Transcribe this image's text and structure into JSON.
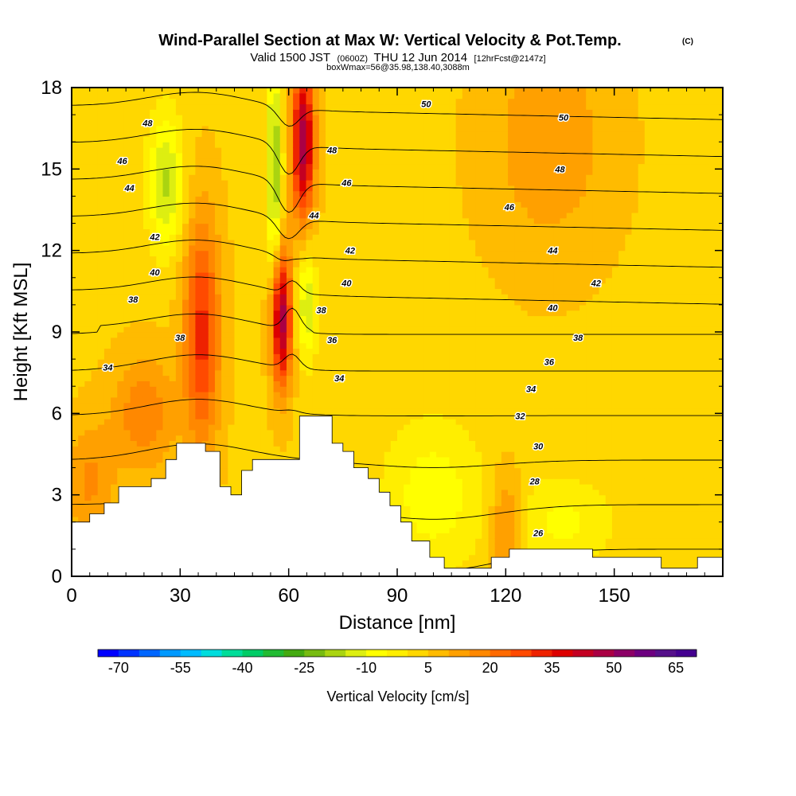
{
  "header": {
    "title": "Wind-Parallel Section at Max W: Vertical Velocity & Pot.Temp.",
    "copyright": "(C)",
    "valid_prefix": "Valid 1500 JST",
    "valid_utc": "(0600Z)",
    "valid_date": "THU 12 Jun 2014",
    "forecast": "[12hrFcst@2147z]",
    "box_info": "boxWmax=56@35.98,138.40,3088m"
  },
  "chart_data": {
    "type": "heatmap",
    "xlabel": "Distance [nm]",
    "ylabel": "Height [Kft MSL]",
    "xlim": [
      0,
      180
    ],
    "ylim": [
      0,
      18
    ],
    "x_ticks": [
      "0",
      "30",
      "60",
      "90",
      "120",
      "150"
    ],
    "y_ticks": [
      "0",
      "3",
      "6",
      "9",
      "12",
      "15",
      "18"
    ],
    "colorbar": {
      "label": "Vertical Velocity [cm/s]",
      "tick_labels": [
        "-70",
        "-55",
        "-40",
        "-25",
        "-10",
        "5",
        "20",
        "35",
        "50",
        "65"
      ],
      "min": -75,
      "max": 70,
      "step": 5,
      "colors": [
        "#0000ff",
        "#0033ff",
        "#0066ff",
        "#0099ff",
        "#00bbff",
        "#00dddd",
        "#00dd99",
        "#00cc66",
        "#22bb33",
        "#44aa11",
        "#77bb11",
        "#aad411",
        "#ddee11",
        "#ffff00",
        "#ffee00",
        "#ffd700",
        "#ffbb00",
        "#ffa000",
        "#ff8800",
        "#ff6a00",
        "#ff4a00",
        "#ee2200",
        "#dd0000",
        "#c40022",
        "#aa0044",
        "#8c0066",
        "#6d0080",
        "#55108a",
        "#440090"
      ]
    },
    "w_field": {
      "background": 4,
      "features": [
        {
          "x": 64,
          "z": 16,
          "w": 45,
          "sx": 2.2,
          "sz": 2.0
        },
        {
          "x": 58,
          "z": 9.5,
          "w": 45,
          "sx": 2.0,
          "sz": 1.8
        },
        {
          "x": 36,
          "z": 9,
          "w": 28,
          "sx": 3.5,
          "sz": 3.0
        },
        {
          "x": 20,
          "z": 6,
          "w": 15,
          "sx": 6.0,
          "sz": 1.5
        },
        {
          "x": 5,
          "z": 3.5,
          "w": 12,
          "sx": 5.0,
          "sz": 1.5
        },
        {
          "x": 56,
          "z": 15,
          "w": -25,
          "sx": 1.5,
          "sz": 3.0
        },
        {
          "x": 65,
          "z": 10,
          "w": -18,
          "sx": 2.0,
          "sz": 1.5
        },
        {
          "x": 26,
          "z": 14.5,
          "w": -20,
          "sx": 3.5,
          "sz": 1.8
        },
        {
          "x": 100,
          "z": 3,
          "w": -12,
          "sx": 10.0,
          "sz": 2.0
        },
        {
          "x": 136,
          "z": 2,
          "w": -10,
          "sx": 10.0,
          "sz": 1.2
        },
        {
          "x": 132,
          "z": 16,
          "w": 10,
          "sx": 12.0,
          "sz": 3.0
        },
        {
          "x": 120,
          "z": 1.8,
          "w": 15,
          "sx": 3.0,
          "sz": 1.5
        }
      ]
    },
    "terrain": [
      [
        0,
        2
      ],
      [
        5,
        2
      ],
      [
        5,
        2.3
      ],
      [
        9,
        2.3
      ],
      [
        9,
        2.7
      ],
      [
        13,
        2.7
      ],
      [
        13,
        3.3
      ],
      [
        22,
        3.3
      ],
      [
        22,
        3.6
      ],
      [
        26,
        3.6
      ],
      [
        26,
        4.3
      ],
      [
        29,
        4.3
      ],
      [
        29,
        4.9
      ],
      [
        37,
        4.9
      ],
      [
        37,
        4.6
      ],
      [
        41,
        4.6
      ],
      [
        41,
        3.3
      ],
      [
        44,
        3.3
      ],
      [
        44,
        3
      ],
      [
        47,
        3
      ],
      [
        47,
        3.9
      ],
      [
        50,
        3.9
      ],
      [
        50,
        4.3
      ],
      [
        63,
        4.3
      ],
      [
        63,
        5.9
      ],
      [
        72,
        5.9
      ],
      [
        72,
        4.9
      ],
      [
        75,
        4.9
      ],
      [
        75,
        4.6
      ],
      [
        78,
        4.6
      ],
      [
        78,
        4
      ],
      [
        82,
        4
      ],
      [
        82,
        3.6
      ],
      [
        85,
        3.6
      ],
      [
        85,
        3.1
      ],
      [
        88,
        3.1
      ],
      [
        88,
        2.6
      ],
      [
        91,
        2.6
      ],
      [
        91,
        2
      ],
      [
        94,
        2
      ],
      [
        94,
        1.3
      ],
      [
        99,
        1.3
      ],
      [
        99,
        0.7
      ],
      [
        103,
        0.7
      ],
      [
        103,
        0.3
      ],
      [
        116,
        0.3
      ],
      [
        116,
        0.7
      ],
      [
        121,
        0.7
      ],
      [
        121,
        1
      ],
      [
        144,
        1
      ],
      [
        144,
        0.7
      ],
      [
        163,
        0.7
      ],
      [
        163,
        0.3
      ],
      [
        173,
        0.3
      ],
      [
        173,
        0.7
      ],
      [
        182,
        0.7
      ],
      [
        182,
        1
      ],
      [
        190,
        1
      ],
      [
        190,
        1.3
      ],
      [
        200,
        1.3
      ],
      [
        200,
        0
      ],
      [
        0,
        0
      ]
    ],
    "theta_levels": [
      26,
      28,
      30,
      32,
      34,
      36,
      38,
      40,
      42,
      44,
      46,
      48,
      50
    ],
    "contour_labels": [
      {
        "text": "50",
        "x": 98,
        "y": 17.4
      },
      {
        "text": "48",
        "x": 21,
        "y": 16.7
      },
      {
        "text": "46",
        "x": 14,
        "y": 15.3
      },
      {
        "text": "44",
        "x": 16,
        "y": 14.3
      },
      {
        "text": "42",
        "x": 23,
        "y": 12.5
      },
      {
        "text": "40",
        "x": 23,
        "y": 11.2
      },
      {
        "text": "38",
        "x": 17,
        "y": 10.2
      },
      {
        "text": "38",
        "x": 30,
        "y": 8.8
      },
      {
        "text": "34",
        "x": 10,
        "y": 7.7
      },
      {
        "text": "48",
        "x": 72,
        "y": 15.7
      },
      {
        "text": "46",
        "x": 76,
        "y": 14.5
      },
      {
        "text": "44",
        "x": 67,
        "y": 13.3
      },
      {
        "text": "42",
        "x": 77,
        "y": 12.0
      },
      {
        "text": "40",
        "x": 76,
        "y": 10.8
      },
      {
        "text": "38",
        "x": 69,
        "y": 9.8
      },
      {
        "text": "36",
        "x": 72,
        "y": 8.7
      },
      {
        "text": "34",
        "x": 74,
        "y": 7.3
      },
      {
        "text": "50",
        "x": 136,
        "y": 16.9
      },
      {
        "text": "48",
        "x": 135,
        "y": 15.0
      },
      {
        "text": "46",
        "x": 121,
        "y": 13.6
      },
      {
        "text": "44",
        "x": 133,
        "y": 12.0
      },
      {
        "text": "42",
        "x": 145,
        "y": 10.8
      },
      {
        "text": "40",
        "x": 133,
        "y": 9.9
      },
      {
        "text": "38",
        "x": 140,
        "y": 8.8
      },
      {
        "text": "36",
        "x": 132,
        "y": 7.9
      },
      {
        "text": "34",
        "x": 127,
        "y": 6.9
      },
      {
        "text": "32",
        "x": 124,
        "y": 5.9
      },
      {
        "text": "30",
        "x": 129,
        "y": 4.8
      },
      {
        "text": "28",
        "x": 128,
        "y": 3.5
      },
      {
        "text": "26",
        "x": 129,
        "y": 1.6
      }
    ]
  }
}
